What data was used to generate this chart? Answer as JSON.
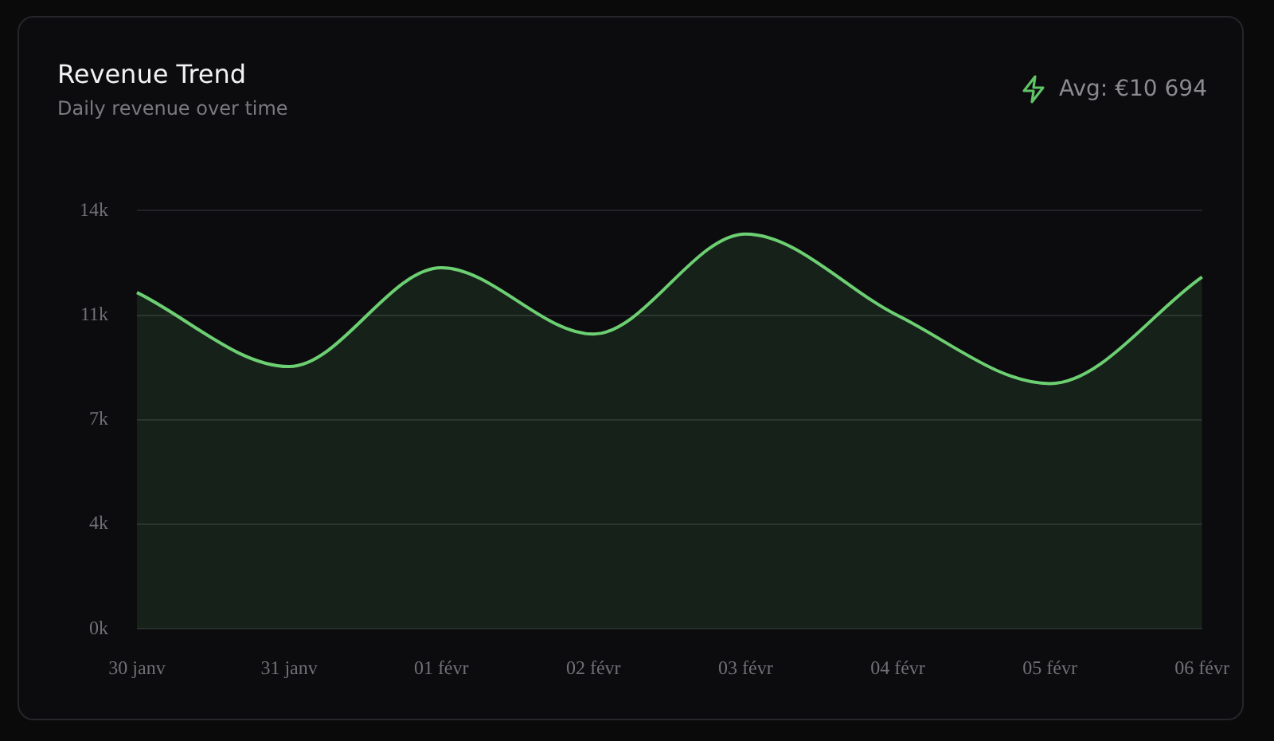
{
  "chart_data": {
    "type": "area",
    "title": "Revenue Trend",
    "subtitle": "Daily revenue over time",
    "annotations": [
      "Avg: €10 694"
    ],
    "categories": [
      "30 janv",
      "31 janv",
      "01 févr",
      "02 févr",
      "03 févr",
      "04 févr",
      "05 févr",
      "06 févr"
    ],
    "series": [
      {
        "color": "#6ccf72",
        "values": [
          11260,
          8780,
          12090,
          9870,
          13220,
          10490,
          8210,
          11780
        ]
      }
    ],
    "ylim": [
      0,
      14000
    ],
    "yticks": [
      {
        "value": 0,
        "label": "0k"
      },
      {
        "value": 3500,
        "label": "4k"
      },
      {
        "value": 7000,
        "label": "7k"
      },
      {
        "value": 10500,
        "label": "11k"
      },
      {
        "value": 14000,
        "label": "14k"
      }
    ],
    "grid": "y",
    "legend": false,
    "marker": "none"
  }
}
